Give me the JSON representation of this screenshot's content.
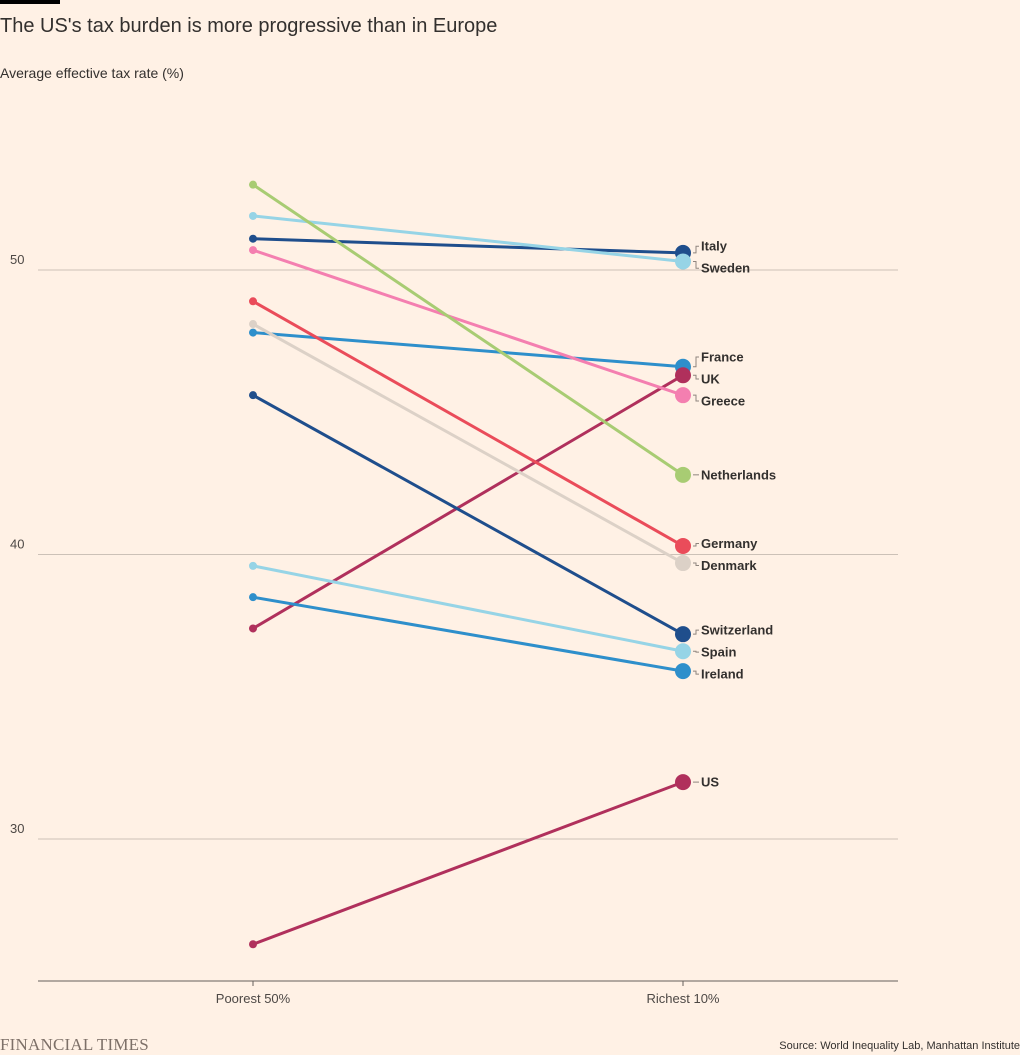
{
  "title": "The US's tax burden is more progressive than in Europe",
  "subtitle": "Average effective tax rate (%)",
  "source": "Source: World Inequality Lab, Manhattan Institute",
  "logo": "FINANCIAL TIMES",
  "chart_data": {
    "type": "line",
    "categories": [
      "Poorest 50%",
      "Richest 10%"
    ],
    "ylim": [
      25,
      55
    ],
    "yticks": [
      30,
      40,
      50
    ],
    "grid": true,
    "series": [
      {
        "name": "Italy",
        "values": [
          51.1,
          50.6
        ],
        "color": "#1f4e8c"
      },
      {
        "name": "Sweden",
        "values": [
          51.9,
          50.3
        ],
        "color": "#96d4e6"
      },
      {
        "name": "France",
        "values": [
          47.8,
          46.6
        ],
        "color": "#2e8fcb"
      },
      {
        "name": "UK",
        "values": [
          37.4,
          46.3
        ],
        "color": "#b0305c"
      },
      {
        "name": "Greece",
        "values": [
          50.7,
          45.6
        ],
        "color": "#f47fb0"
      },
      {
        "name": "Netherlands",
        "values": [
          53.0,
          42.8
        ],
        "color": "#a8cc73"
      },
      {
        "name": "Germany",
        "values": [
          48.9,
          40.3
        ],
        "color": "#ea4c5a"
      },
      {
        "name": "Denmark",
        "values": [
          48.1,
          39.7
        ],
        "color": "#dcd1c7"
      },
      {
        "name": "Switzerland",
        "values": [
          45.6,
          37.2
        ],
        "color": "#1f4e8c"
      },
      {
        "name": "Spain",
        "values": [
          39.6,
          36.6
        ],
        "color": "#96d4e6"
      },
      {
        "name": "Ireland",
        "values": [
          38.5,
          35.9
        ],
        "color": "#2e8fcb"
      },
      {
        "name": "US",
        "values": [
          26.3,
          32.0
        ],
        "color": "#b0305c"
      }
    ]
  }
}
